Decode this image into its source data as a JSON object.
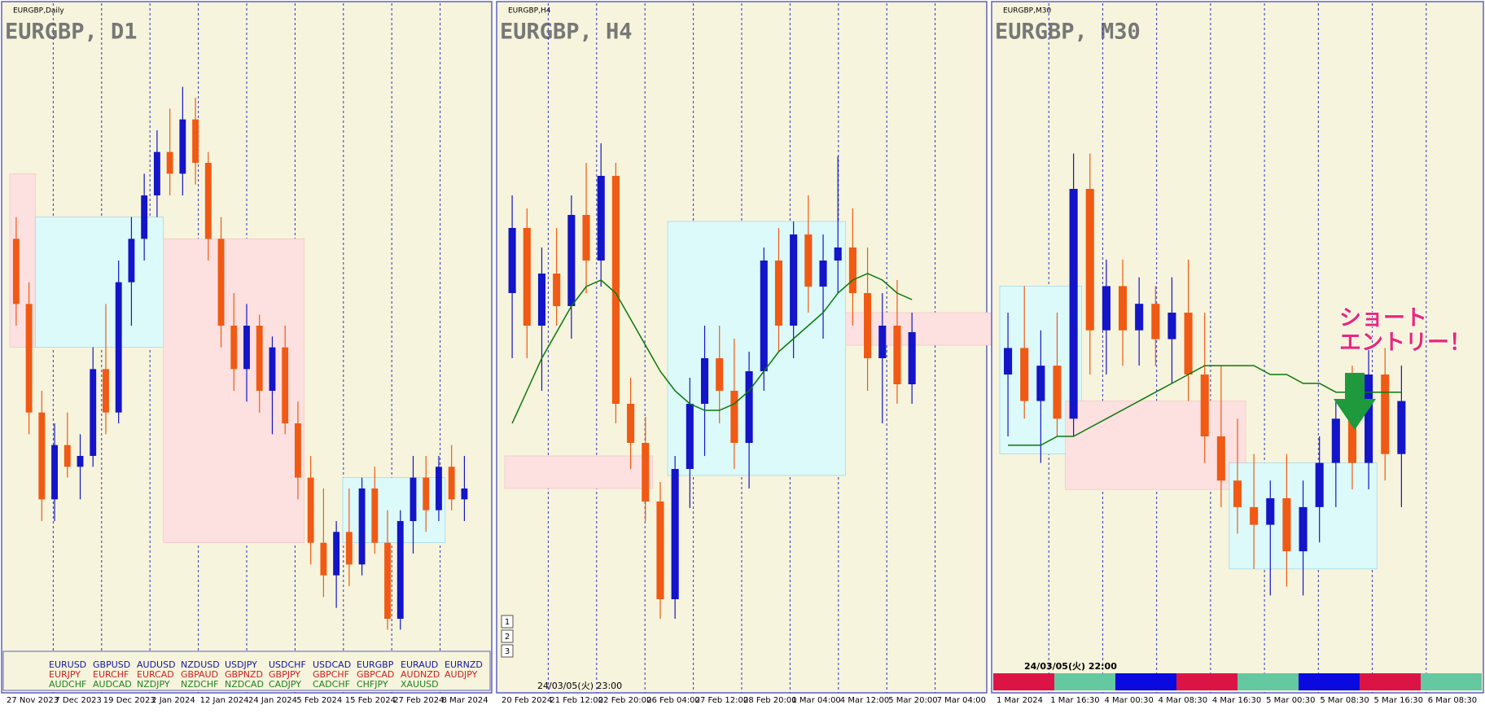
{
  "panels": [
    {
      "header": "EURGBP,Daily",
      "title": "EURGBP, D1",
      "ylim": [
        0.85,
        0.877
      ],
      "dates": [
        "27 Nov 2023",
        "7 Dec 2023",
        "19 Dec 2023",
        "2 Jan 2024",
        "12 Jan 2024",
        "24 Jan 2024",
        "5 Feb 2024",
        "15 Feb 2024",
        "27 Feb 2024",
        "8 Mar 2024"
      ],
      "candles": [
        [
          0.869,
          0.87,
          0.865,
          0.866
        ],
        [
          0.866,
          0.867,
          0.86,
          0.861
        ],
        [
          0.861,
          0.862,
          0.856,
          0.857
        ],
        [
          0.857,
          0.8605,
          0.856,
          0.8595
        ],
        [
          0.8595,
          0.861,
          0.858,
          0.8585
        ],
        [
          0.8585,
          0.86,
          0.857,
          0.859
        ],
        [
          0.859,
          0.864,
          0.8585,
          0.863
        ],
        [
          0.863,
          0.866,
          0.86,
          0.861
        ],
        [
          0.861,
          0.868,
          0.8605,
          0.867
        ],
        [
          0.867,
          0.87,
          0.865,
          0.869
        ],
        [
          0.869,
          0.872,
          0.868,
          0.871
        ],
        [
          0.871,
          0.874,
          0.87,
          0.873
        ],
        [
          0.873,
          0.875,
          0.871,
          0.872
        ],
        [
          0.872,
          0.876,
          0.871,
          0.8745
        ],
        [
          0.8745,
          0.8755,
          0.8715,
          0.8725
        ],
        [
          0.8725,
          0.873,
          0.868,
          0.869
        ],
        [
          0.869,
          0.87,
          0.864,
          0.865
        ],
        [
          0.865,
          0.8665,
          0.862,
          0.863
        ],
        [
          0.863,
          0.866,
          0.8615,
          0.865
        ],
        [
          0.865,
          0.8655,
          0.861,
          0.862
        ],
        [
          0.862,
          0.8645,
          0.86,
          0.864
        ],
        [
          0.864,
          0.865,
          0.86,
          0.8605
        ],
        [
          0.8605,
          0.8615,
          0.857,
          0.858
        ],
        [
          0.858,
          0.859,
          0.854,
          0.855
        ],
        [
          0.855,
          0.8575,
          0.8525,
          0.8535
        ],
        [
          0.8535,
          0.856,
          0.852,
          0.8555
        ],
        [
          0.8555,
          0.8575,
          0.853,
          0.854
        ],
        [
          0.854,
          0.858,
          0.8535,
          0.8575
        ],
        [
          0.8575,
          0.8585,
          0.8545,
          0.855
        ],
        [
          0.855,
          0.8565,
          0.851,
          0.8515
        ],
        [
          0.8515,
          0.8565,
          0.851,
          0.856
        ],
        [
          0.856,
          0.859,
          0.8545,
          0.858
        ],
        [
          0.858,
          0.859,
          0.8555,
          0.8565
        ],
        [
          0.8565,
          0.859,
          0.856,
          0.8585
        ],
        [
          0.8585,
          0.8595,
          0.8565,
          0.857
        ],
        [
          0.857,
          0.859,
          0.856,
          0.8575
        ]
      ],
      "zones": [
        {
          "from": 0,
          "to": 1,
          "low": 0.864,
          "high": 0.872,
          "color": "#fde0e0"
        },
        {
          "from": 2,
          "to": 11,
          "low": 0.864,
          "high": 0.87,
          "color": "#dcfafa"
        },
        {
          "from": 12,
          "to": 22,
          "low": 0.855,
          "high": 0.869,
          "color": "#fde0e0"
        },
        {
          "from": 26,
          "to": 33,
          "low": 0.855,
          "high": 0.858,
          "color": "#dcfafa"
        }
      ]
    },
    {
      "header": "EURGBP,H4",
      "title": "EURGBP, H4",
      "ylim": [
        0.8505,
        0.86
      ],
      "dates": [
        "20 Feb 2024",
        "21 Feb 12:00",
        "22 Feb 20:00",
        "26 Feb 04:00",
        "27 Feb 12:00",
        "28 Feb 20:00",
        "1 Mar 04:00",
        "4 Mar 12:00",
        "5 Mar 20:00",
        "7 Mar 04:00"
      ],
      "candles": [
        [
          0.8565,
          0.858,
          0.8555,
          0.8575
        ],
        [
          0.8575,
          0.8578,
          0.8555,
          0.856
        ],
        [
          0.856,
          0.8572,
          0.855,
          0.8568
        ],
        [
          0.8568,
          0.8575,
          0.856,
          0.8563
        ],
        [
          0.8563,
          0.858,
          0.8558,
          0.8577
        ],
        [
          0.8577,
          0.8585,
          0.8565,
          0.857
        ],
        [
          0.857,
          0.8588,
          0.8566,
          0.8583
        ],
        [
          0.8583,
          0.8585,
          0.8545,
          0.8548
        ],
        [
          0.8548,
          0.8552,
          0.8538,
          0.8542
        ],
        [
          0.8542,
          0.8546,
          0.853,
          0.8533
        ],
        [
          0.8533,
          0.8536,
          0.8515,
          0.8518
        ],
        [
          0.8518,
          0.854,
          0.8515,
          0.8538
        ],
        [
          0.8538,
          0.8552,
          0.8532,
          0.8548
        ],
        [
          0.8548,
          0.856,
          0.854,
          0.8555
        ],
        [
          0.8555,
          0.856,
          0.8545,
          0.855
        ],
        [
          0.855,
          0.8558,
          0.8538,
          0.8542
        ],
        [
          0.8542,
          0.8556,
          0.8535,
          0.8553
        ],
        [
          0.8553,
          0.8572,
          0.855,
          0.857
        ],
        [
          0.857,
          0.8575,
          0.8556,
          0.856
        ],
        [
          0.856,
          0.8576,
          0.8555,
          0.8574
        ],
        [
          0.8574,
          0.858,
          0.8562,
          0.8566
        ],
        [
          0.8566,
          0.8574,
          0.8558,
          0.857
        ],
        [
          0.857,
          0.8586,
          0.8565,
          0.8572
        ],
        [
          0.8572,
          0.8578,
          0.856,
          0.8565
        ],
        [
          0.8565,
          0.8572,
          0.855,
          0.8555
        ],
        [
          0.8555,
          0.8565,
          0.8545,
          0.856
        ],
        [
          0.856,
          0.8567,
          0.8548,
          0.8551
        ],
        [
          0.8551,
          0.8562,
          0.8548,
          0.8559
        ]
      ],
      "ma": [
        0.8545,
        0.855,
        0.8555,
        0.8559,
        0.8563,
        0.8566,
        0.8567,
        0.8565,
        0.8561,
        0.8557,
        0.8553,
        0.855,
        0.8548,
        0.8547,
        0.8547,
        0.8548,
        0.855,
        0.8553,
        0.8556,
        0.8558,
        0.856,
        0.8562,
        0.8565,
        0.8567,
        0.8568,
        0.8567,
        0.8565,
        0.8564
      ],
      "zones": [
        {
          "from": 0,
          "to": 9,
          "low": 0.8535,
          "high": 0.854,
          "color": "#fde0e0"
        },
        {
          "from": 11,
          "to": 22,
          "low": 0.8537,
          "high": 0.8576,
          "color": "#dcfafa"
        },
        {
          "from": 23,
          "to": 34,
          "low": 0.8557,
          "high": 0.8562,
          "color": "#fde0e0"
        }
      ]
    },
    {
      "header": "EURGBP,M30",
      "title": "EURGBP, M30",
      "ylim": [
        0.853,
        0.86
      ],
      "dates": [
        "1 Mar 2024",
        "1 Mar 16:30",
        "4 Mar 00:30",
        "4 Mar 08:30",
        "4 Mar 16:30",
        "5 Mar 00:30",
        "5 Mar 08:30",
        "5 Mar 16:30",
        "6 Mar 08:30"
      ],
      "candles": [
        [
          0.8565,
          0.8572,
          0.8558,
          0.8568
        ],
        [
          0.8568,
          0.8575,
          0.856,
          0.8562
        ],
        [
          0.8562,
          0.857,
          0.8555,
          0.8566
        ],
        [
          0.8566,
          0.8572,
          0.8558,
          0.856
        ],
        [
          0.856,
          0.859,
          0.8558,
          0.8586
        ],
        [
          0.8586,
          0.859,
          0.8565,
          0.857
        ],
        [
          0.857,
          0.8578,
          0.8565,
          0.8575
        ],
        [
          0.8575,
          0.8578,
          0.8566,
          0.857
        ],
        [
          0.857,
          0.8576,
          0.8566,
          0.8573
        ],
        [
          0.8573,
          0.8575,
          0.8566,
          0.8569
        ],
        [
          0.8569,
          0.8576,
          0.8564,
          0.8572
        ],
        [
          0.8572,
          0.8578,
          0.8562,
          0.8565
        ],
        [
          0.8565,
          0.8572,
          0.8555,
          0.8558
        ],
        [
          0.8558,
          0.8566,
          0.855,
          0.8553
        ],
        [
          0.8553,
          0.856,
          0.8547,
          0.855
        ],
        [
          0.855,
          0.8556,
          0.8543,
          0.8548
        ],
        [
          0.8548,
          0.8553,
          0.854,
          0.8551
        ],
        [
          0.8551,
          0.8556,
          0.8541,
          0.8545
        ],
        [
          0.8545,
          0.8553,
          0.854,
          0.855
        ],
        [
          0.855,
          0.8558,
          0.8546,
          0.8555
        ],
        [
          0.8555,
          0.8562,
          0.855,
          0.856
        ],
        [
          0.856,
          0.8566,
          0.8552,
          0.8555
        ],
        [
          0.8555,
          0.8568,
          0.8552,
          0.8565
        ],
        [
          0.8565,
          0.8568,
          0.8553,
          0.8556
        ],
        [
          0.8556,
          0.8566,
          0.855,
          0.8562
        ]
      ],
      "ma": [
        0.8557,
        0.8557,
        0.8557,
        0.8558,
        0.8558,
        0.8559,
        0.856,
        0.8561,
        0.8562,
        0.8563,
        0.8564,
        0.8565,
        0.8566,
        0.8566,
        0.8566,
        0.8566,
        0.8565,
        0.8565,
        0.8564,
        0.8564,
        0.8563,
        0.8563,
        0.8563,
        0.8563,
        0.8563
      ],
      "zones": [
        {
          "from": 0,
          "to": 4,
          "low": 0.8556,
          "high": 0.8575,
          "color": "#dcfafa"
        },
        {
          "from": 4,
          "to": 14,
          "low": 0.8552,
          "high": 0.8562,
          "color": "#fde0e0"
        },
        {
          "from": 14,
          "to": 22,
          "low": 0.8543,
          "high": 0.8555,
          "color": "#dcfafa"
        }
      ]
    }
  ],
  "symbols": [
    [
      "EURUSD",
      "GBPUSD",
      "AUDUSD",
      "NZDUSD",
      "USDJPY",
      "USDCHF",
      "USDCAD",
      "EURGBP",
      "EURAUD",
      "EURNZD"
    ],
    [
      "EURJPY",
      "EURCHF",
      "EURCAD",
      "GBPAUD",
      "GBPNZD",
      "GBPJPY",
      "GBPCHF",
      "GBPCAD",
      "AUDNZD",
      "AUDJPY"
    ],
    [
      "AUDCHF",
      "AUDCAD",
      "NZDJPY",
      "NZDCHF",
      "NZDCAD",
      "CADJPY",
      "CADCHF",
      "CHFJPY",
      "XAUUSD"
    ]
  ],
  "buttons": [
    "1",
    "2",
    "3"
  ],
  "timestamps": [
    "24/03/05(火) 23:00",
    "24/03/05(火) 22:00"
  ],
  "annotation": [
    "ショート",
    "エントリー！"
  ]
}
